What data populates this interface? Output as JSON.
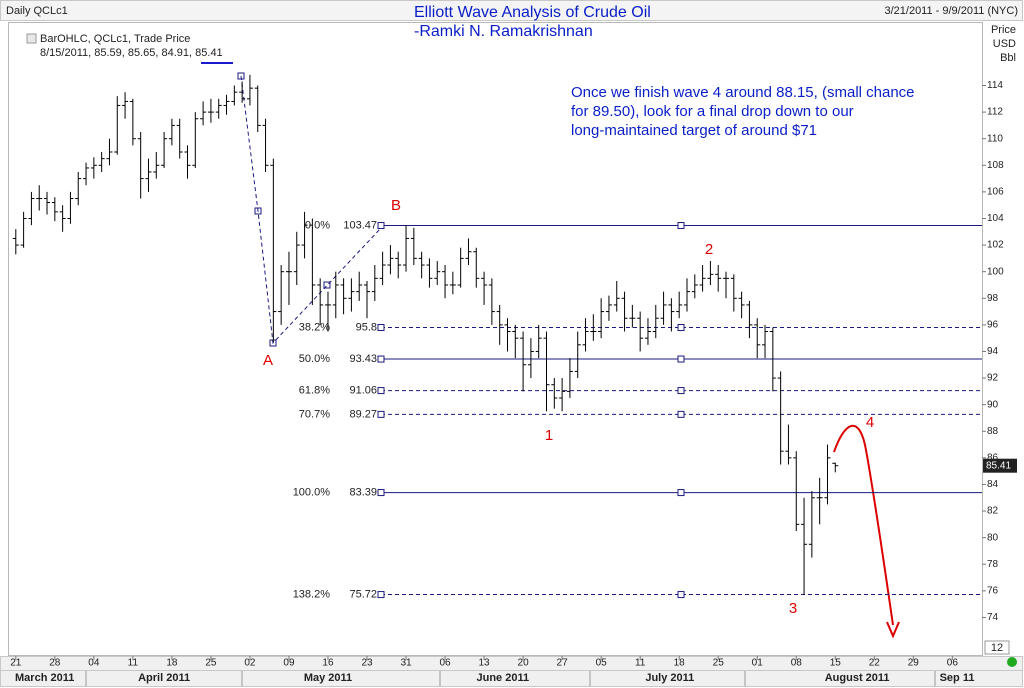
{
  "chart_data": {
    "type": "ohlc",
    "header": "Daily QCLc1",
    "title": "Elliott Wave Analysis of Crude Oil",
    "subtitle": "-Ramki N. Ramakrishnan",
    "date_range": "3/21/2011 - 9/9/2011 (NYC)",
    "y_axis_label": [
      "Price",
      "USD",
      "Bbl"
    ],
    "legend": {
      "name": "BarOHLC, QCLc1, Trade Price",
      "detail": "8/15/2011, 85.59, 85.65, 84.91, 85.41"
    },
    "annotation": [
      "Once we finish wave 4 around 88.15, (small chance",
      "for 89.50), look for a final drop down to our",
      "long-maintained target of around $71"
    ],
    "corner_label": "12",
    "color": "#000000",
    "x": [
      0,
      1,
      2,
      3,
      4,
      5,
      6,
      7,
      8,
      9,
      10,
      11,
      12,
      13,
      14,
      15,
      16,
      17,
      18,
      19,
      20,
      21,
      22,
      23,
      24,
      25,
      26,
      27,
      28,
      29,
      30,
      31,
      32,
      33,
      34,
      35,
      36,
      37,
      38,
      39,
      40,
      41,
      42,
      43,
      44,
      45,
      46,
      47,
      48,
      49,
      50,
      51,
      52,
      53,
      54,
      55,
      56,
      57,
      58,
      59,
      60,
      61,
      62,
      63,
      64,
      65,
      66,
      67,
      68,
      69,
      70,
      71,
      72,
      73,
      74,
      75,
      76,
      77,
      78,
      79,
      80,
      81,
      82,
      83,
      84,
      85,
      86,
      87,
      88,
      89,
      90,
      91,
      92,
      93,
      94,
      95,
      96,
      97,
      98,
      99,
      100,
      101,
      102,
      103,
      104,
      105
    ],
    "ohlc": [
      [
        102.5,
        103.2,
        101.3,
        102.0
      ],
      [
        102.0,
        104.5,
        101.8,
        104.0
      ],
      [
        104.0,
        106.0,
        103.5,
        105.5
      ],
      [
        105.5,
        106.5,
        104.6,
        105.5
      ],
      [
        105.5,
        106.0,
        104.3,
        105.2
      ],
      [
        105.2,
        105.6,
        103.8,
        104.5
      ],
      [
        104.5,
        105.0,
        103.0,
        104.0
      ],
      [
        104.0,
        106.0,
        103.6,
        105.5
      ],
      [
        105.5,
        107.5,
        105.0,
        107.0
      ],
      [
        107.0,
        108.2,
        106.5,
        107.8
      ],
      [
        107.8,
        108.6,
        107.0,
        108.0
      ],
      [
        108.0,
        109.0,
        107.5,
        108.5
      ],
      [
        108.5,
        110.0,
        108.0,
        109.0
      ],
      [
        109.0,
        113.2,
        108.8,
        112.5
      ],
      [
        112.5,
        113.5,
        111.5,
        112.8
      ],
      [
        112.8,
        113.0,
        109.5,
        110.0
      ],
      [
        110.0,
        110.5,
        105.5,
        107.0
      ],
      [
        107.0,
        108.5,
        106.0,
        107.5
      ],
      [
        107.5,
        109.0,
        107.0,
        108.0
      ],
      [
        108.0,
        110.5,
        107.8,
        110.0
      ],
      [
        110.0,
        111.5,
        109.5,
        111.0
      ],
      [
        111.0,
        111.5,
        108.5,
        109.0
      ],
      [
        109.0,
        109.5,
        107.0,
        108.0
      ],
      [
        108.0,
        112.0,
        107.8,
        111.5
      ],
      [
        111.5,
        112.8,
        111.0,
        112.0
      ],
      [
        112.0,
        113.0,
        111.2,
        112.0
      ],
      [
        112.0,
        113.0,
        111.5,
        112.5
      ],
      [
        112.5,
        113.3,
        111.8,
        112.8
      ],
      [
        112.8,
        114.0,
        112.5,
        113.5
      ],
      [
        113.5,
        114.3,
        112.7,
        113.0
      ],
      [
        113.0,
        114.8,
        112.5,
        113.8
      ],
      [
        113.8,
        114.0,
        110.5,
        111.0
      ],
      [
        111.0,
        111.5,
        107.5,
        108.0
      ],
      [
        108.0,
        108.5,
        94.7,
        97.0
      ],
      [
        97.0,
        100.5,
        96.0,
        100.0
      ],
      [
        100.0,
        101.5,
        97.5,
        100.0
      ],
      [
        100.0,
        103.0,
        99.0,
        102.0
      ],
      [
        102.0,
        104.5,
        101.0,
        103.5
      ],
      [
        103.5,
        104.0,
        97.5,
        99.0
      ],
      [
        99.0,
        99.5,
        96.0,
        97.5
      ],
      [
        97.5,
        98.5,
        95.5,
        97.5
      ],
      [
        97.5,
        100.0,
        96.5,
        99.0
      ],
      [
        99.0,
        99.5,
        96.8,
        98.0
      ],
      [
        98.0,
        99.5,
        97.0,
        98.5
      ],
      [
        98.5,
        100.0,
        97.8,
        99.0
      ],
      [
        99.0,
        99.3,
        96.5,
        98.5
      ],
      [
        98.5,
        100.5,
        97.8,
        99.5
      ],
      [
        99.5,
        101.5,
        99.0,
        100.5
      ],
      [
        100.5,
        102.0,
        99.8,
        101.0
      ],
      [
        101.0,
        101.5,
        99.5,
        100.5
      ],
      [
        100.5,
        103.5,
        100.0,
        102.5
      ],
      [
        102.5,
        103.3,
        100.5,
        101.0
      ],
      [
        101.0,
        101.5,
        99.5,
        100.5
      ],
      [
        100.5,
        101.0,
        98.8,
        99.5
      ],
      [
        99.5,
        100.8,
        99.0,
        100.0
      ],
      [
        100.0,
        100.5,
        98.0,
        99.0
      ],
      [
        99.0,
        100.0,
        98.3,
        99.0
      ],
      [
        99.0,
        101.8,
        98.8,
        101.0
      ],
      [
        101.0,
        102.5,
        100.5,
        101.5
      ],
      [
        101.5,
        101.8,
        98.8,
        99.5
      ],
      [
        99.5,
        100.0,
        97.5,
        99.0
      ],
      [
        99.0,
        99.5,
        96.0,
        97.0
      ],
      [
        97.0,
        97.5,
        94.5,
        96.0
      ],
      [
        96.0,
        96.5,
        94.0,
        95.5
      ],
      [
        95.5,
        96.0,
        93.5,
        95.0
      ],
      [
        95.0,
        95.5,
        91.0,
        93.0
      ],
      [
        93.0,
        95.0,
        92.0,
        94.0
      ],
      [
        94.0,
        96.0,
        93.5,
        95.0
      ],
      [
        95.0,
        95.5,
        89.5,
        91.5
      ],
      [
        91.5,
        92.0,
        89.7,
        90.5
      ],
      [
        90.5,
        92.0,
        89.5,
        91.0
      ],
      [
        91.0,
        93.5,
        90.5,
        92.5
      ],
      [
        92.5,
        95.5,
        92.0,
        94.5
      ],
      [
        94.5,
        96.5,
        94.0,
        95.5
      ],
      [
        95.5,
        96.8,
        94.8,
        95.5
      ],
      [
        95.5,
        98.0,
        95.0,
        97.0
      ],
      [
        97.0,
        98.2,
        96.3,
        97.5
      ],
      [
        97.5,
        99.3,
        97.0,
        98.0
      ],
      [
        98.0,
        98.5,
        95.5,
        96.5
      ],
      [
        96.5,
        97.5,
        95.8,
        96.5
      ],
      [
        96.5,
        97.0,
        94.0,
        95.0
      ],
      [
        95.0,
        96.5,
        94.5,
        95.5
      ],
      [
        95.5,
        97.5,
        95.0,
        96.5
      ],
      [
        96.5,
        98.5,
        96.0,
        97.5
      ],
      [
        97.5,
        98.0,
        95.5,
        97.0
      ],
      [
        97.0,
        98.5,
        96.5,
        97.5
      ],
      [
        97.5,
        99.5,
        97.0,
        98.5
      ],
      [
        98.5,
        99.8,
        98.0,
        99.0
      ],
      [
        99.0,
        100.5,
        98.5,
        99.5
      ],
      [
        99.5,
        100.8,
        99.0,
        99.8
      ],
      [
        99.8,
        100.5,
        98.5,
        99.5
      ],
      [
        99.5,
        100.0,
        98.0,
        99.5
      ],
      [
        99.5,
        99.8,
        97.0,
        98.0
      ],
      [
        98.0,
        98.5,
        96.5,
        97.5
      ],
      [
        97.5,
        97.8,
        95.0,
        96.0
      ],
      [
        96.0,
        96.5,
        93.5,
        94.5
      ],
      [
        94.5,
        96.0,
        93.5,
        95.5
      ],
      [
        95.5,
        95.8,
        91.0,
        92.0
      ],
      [
        92.0,
        92.5,
        85.5,
        86.5
      ],
      [
        86.5,
        88.5,
        85.5,
        86.0
      ],
      [
        86.0,
        86.5,
        80.5,
        81.0
      ],
      [
        81.0,
        83.0,
        75.7,
        79.5
      ],
      [
        79.5,
        83.5,
        78.5,
        83.0
      ],
      [
        83.0,
        84.5,
        81.0,
        83.0
      ],
      [
        83.0,
        87.0,
        82.5,
        86.0
      ],
      [
        85.59,
        85.65,
        84.91,
        85.41
      ]
    ],
    "xlim": [
      -1,
      123.8
    ],
    "ylim": [
      71.1,
      118.7
    ],
    "yticks": [
      74,
      76,
      78,
      80,
      82,
      84,
      86,
      88,
      90,
      92,
      94,
      96,
      98,
      100,
      102,
      104,
      106,
      108,
      110,
      112,
      114
    ],
    "xticks": [
      {
        "value": 0,
        "label": "21"
      },
      {
        "value": 5,
        "label": "28"
      },
      {
        "value": 10,
        "label": "04"
      },
      {
        "value": 15,
        "label": "11"
      },
      {
        "value": 20,
        "label": "18"
      },
      {
        "value": 25,
        "label": "25"
      },
      {
        "value": 30,
        "label": "02"
      },
      {
        "value": 35,
        "label": "09"
      },
      {
        "value": 40,
        "label": "16"
      },
      {
        "value": 45,
        "label": "23"
      },
      {
        "value": 50,
        "label": "31"
      },
      {
        "value": 55,
        "label": "06"
      },
      {
        "value": 60,
        "label": "13"
      },
      {
        "value": 65,
        "label": "20"
      },
      {
        "value": 70,
        "label": "27"
      },
      {
        "value": 75,
        "label": "05"
      },
      {
        "value": 80,
        "label": "11"
      },
      {
        "value": 85,
        "label": "18"
      },
      {
        "value": 90,
        "label": "25"
      },
      {
        "value": 95,
        "label": "01"
      },
      {
        "value": 100,
        "label": "08"
      },
      {
        "value": 105,
        "label": "15"
      },
      {
        "value": 110,
        "label": "22"
      },
      {
        "value": 115,
        "label": "29"
      },
      {
        "value": 120,
        "label": "06"
      }
    ],
    "month_labels": [
      {
        "value": 3.7,
        "label": "March 2011"
      },
      {
        "value": 19,
        "label": "April 2011"
      },
      {
        "value": 40,
        "label": "May 2011"
      },
      {
        "value": 62.4,
        "label": "June 2011"
      },
      {
        "value": 83.8,
        "label": "July 2011"
      },
      {
        "value": 107.8,
        "label": "August 2011"
      },
      {
        "value": 120.6,
        "label": "Sep 11"
      }
    ],
    "fib_levels": [
      {
        "ratio": "0.0%",
        "price": 103.47,
        "style": "solid"
      },
      {
        "ratio": "38.2%",
        "price": 95.8,
        "style": "dashed"
      },
      {
        "ratio": "50.0%",
        "price": 93.43,
        "style": "solid"
      },
      {
        "ratio": "61.8%",
        "price": 91.06,
        "style": "dashed"
      },
      {
        "ratio": "70.7%",
        "price": 89.27,
        "style": "dashed"
      },
      {
        "ratio": "100.0%",
        "price": 83.39,
        "style": "solid"
      },
      {
        "ratio": "138.2%",
        "price": 75.72,
        "style": "dashed"
      }
    ],
    "fib_color": "#1a1a80",
    "wave_labels": [
      "A",
      "B",
      "1",
      "2",
      "3",
      "4"
    ],
    "wave_color": "#dd0000"
  }
}
